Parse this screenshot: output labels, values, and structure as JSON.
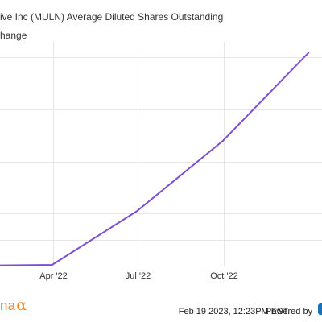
{
  "chart_data": {
    "type": "line",
    "title": "ive Inc (MULN) Average Diluted Shares Outstanding",
    "subtitle": "hange",
    "x": [
      "2022-01-31",
      "2022-03-31",
      "2022-06-30",
      "2022-09-30",
      "2022-12-31"
    ],
    "series": [
      {
        "name": "ive Inc (MULN) Average Diluted Shares Outstanding",
        "color": "#7b4fd6",
        "values": [
          0.01,
          0.03,
          2.1,
          4.8,
          8.2
        ]
      }
    ],
    "x_ticks": [
      "Apr '22",
      "Jul '22",
      "Oct '22"
    ],
    "ylim": [
      0,
      8.6
    ],
    "grid": true,
    "legend": "top-left"
  },
  "footer": {
    "logo_text": "na",
    "logo_symbol": "α",
    "timestamp": "Feb 19 2023, 12:23PM EST.",
    "powered_by": "Powered by"
  },
  "colors": {
    "series": "#7b4fd6",
    "grid": "#e6e6e6",
    "axis": "#cccccc",
    "logo": "#f58220"
  }
}
